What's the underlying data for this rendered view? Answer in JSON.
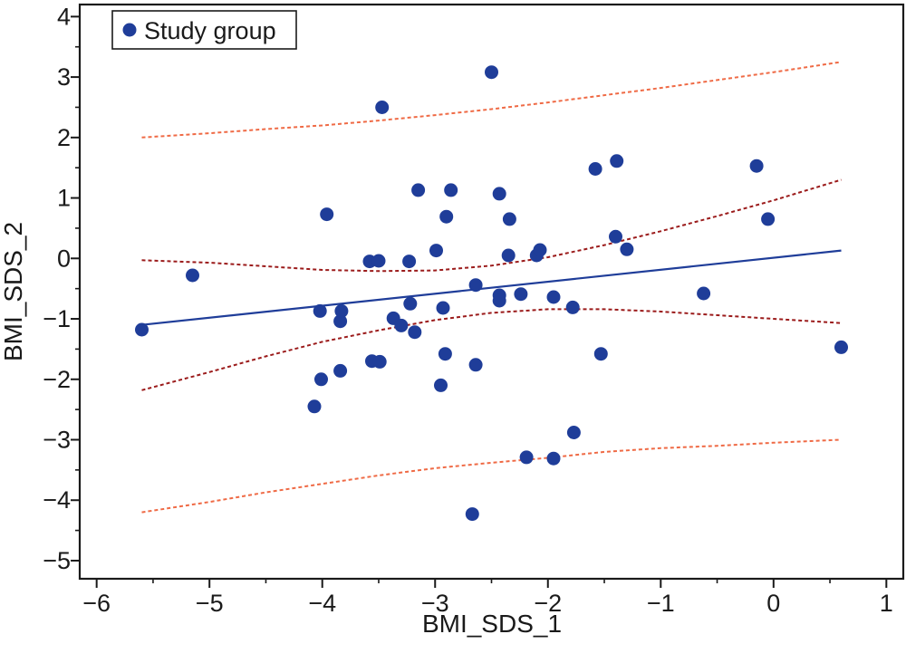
{
  "chart_data": {
    "type": "scatter",
    "xlabel": "BMI_SDS_1",
    "ylabel": "BMI_SDS_2",
    "xlim": [
      -6.15,
      1.15
    ],
    "ylim": [
      -5.3,
      4.2
    ],
    "x_ticks": [
      -6,
      -5,
      -4,
      -3,
      -2,
      -1,
      0,
      1
    ],
    "x_tick_labels": [
      "−6",
      "−5",
      "−4",
      "−3",
      "−2",
      "−1",
      "0",
      "1"
    ],
    "y_ticks": [
      -5,
      -4,
      -3,
      -2,
      -1,
      0,
      1,
      2,
      3,
      4
    ],
    "y_tick_labels": [
      "−5",
      "−4",
      "−3",
      "−2",
      "−1",
      "0",
      "1",
      "2",
      "3",
      "4"
    ],
    "grid": false,
    "legend": {
      "placement": "top-left",
      "entries": [
        "Study group"
      ]
    },
    "colors": {
      "points": "#1f3d99",
      "regression": "#1f3d99",
      "confidence_band": "#9b1b1b",
      "prediction_band": "#ef6a45"
    },
    "series": [
      {
        "name": "Study group",
        "points": [
          {
            "x": -5.6,
            "y": -1.18
          },
          {
            "x": -5.15,
            "y": -0.28
          },
          {
            "x": -4.07,
            "y": -2.45
          },
          {
            "x": -4.02,
            "y": -0.87
          },
          {
            "x": -4.01,
            "y": -2.0
          },
          {
            "x": -3.96,
            "y": 0.73
          },
          {
            "x": -3.84,
            "y": -1.04
          },
          {
            "x": -3.83,
            "y": -0.87
          },
          {
            "x": -3.84,
            "y": -1.86
          },
          {
            "x": -3.58,
            "y": -0.05
          },
          {
            "x": -3.56,
            "y": -1.7
          },
          {
            "x": -3.5,
            "y": -0.04
          },
          {
            "x": -3.49,
            "y": -1.71
          },
          {
            "x": -3.47,
            "y": 2.5
          },
          {
            "x": -3.37,
            "y": -0.99
          },
          {
            "x": -3.3,
            "y": -1.11
          },
          {
            "x": -3.23,
            "y": -0.05
          },
          {
            "x": -3.22,
            "y": -0.75
          },
          {
            "x": -3.18,
            "y": -1.22
          },
          {
            "x": -3.15,
            "y": 1.13
          },
          {
            "x": -2.99,
            "y": 0.13
          },
          {
            "x": -2.95,
            "y": -2.1
          },
          {
            "x": -2.93,
            "y": -0.82
          },
          {
            "x": -2.91,
            "y": -1.58
          },
          {
            "x": -2.9,
            "y": 0.69
          },
          {
            "x": -2.86,
            "y": 1.13
          },
          {
            "x": -2.67,
            "y": -4.23
          },
          {
            "x": -2.64,
            "y": -0.44
          },
          {
            "x": -2.64,
            "y": -1.76
          },
          {
            "x": -2.5,
            "y": 3.08
          },
          {
            "x": -2.43,
            "y": 1.07
          },
          {
            "x": -2.43,
            "y": -0.61
          },
          {
            "x": -2.43,
            "y": -0.7
          },
          {
            "x": -2.35,
            "y": 0.05
          },
          {
            "x": -2.34,
            "y": 0.65
          },
          {
            "x": -2.24,
            "y": -0.59
          },
          {
            "x": -2.19,
            "y": -3.29
          },
          {
            "x": -2.1,
            "y": 0.05
          },
          {
            "x": -2.07,
            "y": 0.14
          },
          {
            "x": -1.95,
            "y": -0.64
          },
          {
            "x": -1.95,
            "y": -3.31
          },
          {
            "x": -1.78,
            "y": -0.81
          },
          {
            "x": -1.77,
            "y": -2.88
          },
          {
            "x": -1.58,
            "y": 1.48
          },
          {
            "x": -1.53,
            "y": -1.58
          },
          {
            "x": -1.4,
            "y": 0.36
          },
          {
            "x": -1.39,
            "y": 1.61
          },
          {
            "x": -1.3,
            "y": 0.15
          },
          {
            "x": -0.62,
            "y": -0.58
          },
          {
            "x": -0.15,
            "y": 1.53
          },
          {
            "x": -0.05,
            "y": 0.65
          },
          {
            "x": 0.6,
            "y": -1.47
          }
        ]
      }
    ],
    "regression_line": {
      "x": [
        -5.6,
        0.6
      ],
      "y": [
        -1.1,
        0.13
      ]
    },
    "confidence_band": {
      "x": [
        -5.6,
        -5.0,
        -4.5,
        -4.0,
        -3.5,
        -3.0,
        -2.5,
        -2.0,
        -1.5,
        -1.0,
        -0.5,
        0.0,
        0.6
      ],
      "upper": [
        -0.03,
        -0.07,
        -0.13,
        -0.19,
        -0.21,
        -0.2,
        -0.12,
        0.02,
        0.22,
        0.45,
        0.7,
        0.96,
        1.3
      ],
      "lower": [
        -2.18,
        -1.88,
        -1.62,
        -1.38,
        -1.19,
        -1.02,
        -0.9,
        -0.84,
        -0.84,
        -0.88,
        -0.94,
        -1.0,
        -1.07
      ]
    },
    "prediction_band": {
      "x": [
        -5.6,
        -5.0,
        -4.5,
        -4.0,
        -3.5,
        -3.0,
        -2.5,
        -2.0,
        -1.5,
        -1.0,
        -0.5,
        0.0,
        0.6
      ],
      "upper": [
        2.0,
        2.07,
        2.14,
        2.2,
        2.28,
        2.37,
        2.47,
        2.58,
        2.7,
        2.82,
        2.95,
        3.08,
        3.25
      ],
      "lower": [
        -4.2,
        -4.03,
        -3.87,
        -3.73,
        -3.59,
        -3.47,
        -3.38,
        -3.3,
        -3.2,
        -3.14,
        -3.1,
        -3.05,
        -3.0
      ]
    }
  }
}
